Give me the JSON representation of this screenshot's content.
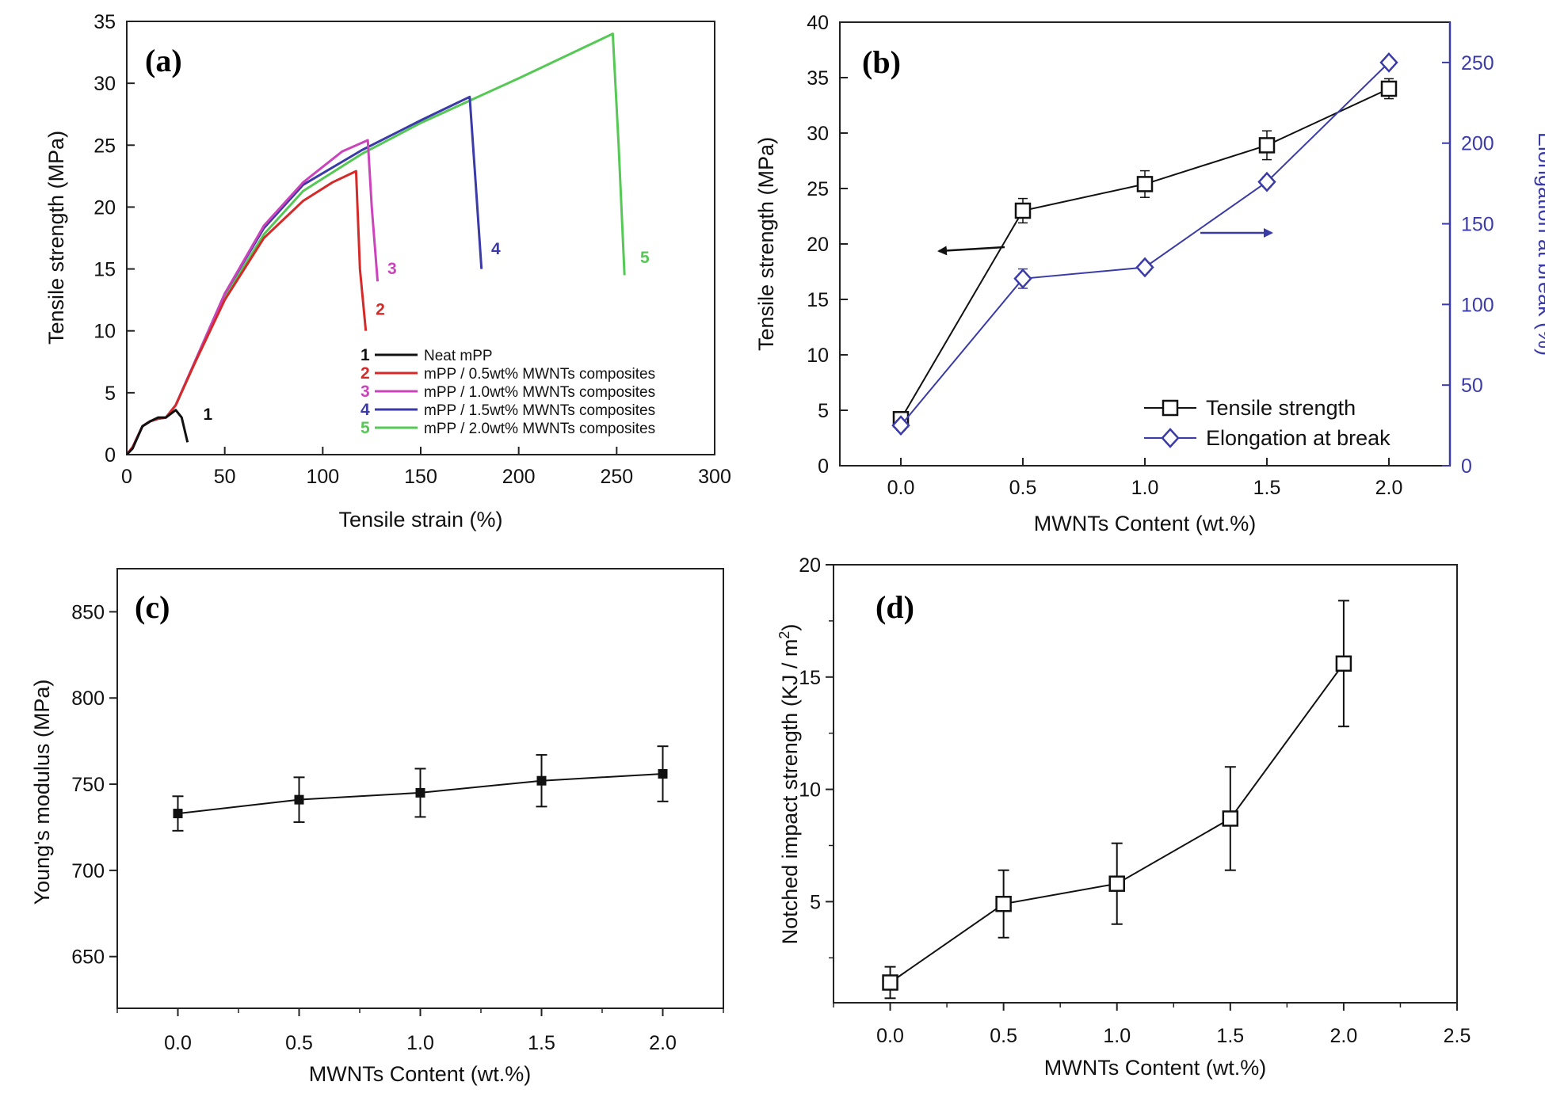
{
  "chart_data": [
    {
      "panel": "(a)",
      "type": "line",
      "xlabel": "Tensile strain (%)",
      "ylabel": "Tensile strength (MPa)",
      "xlim": [
        0,
        300
      ],
      "ylim": [
        0,
        35
      ],
      "xticks": [
        "0",
        "50",
        "100",
        "150",
        "200",
        "250",
        "300"
      ],
      "yticks": [
        "0",
        "5",
        "10",
        "15",
        "20",
        "25",
        "30",
        "35"
      ],
      "series": [
        {
          "id": "1",
          "name": "Neat mPP",
          "color": "#111111",
          "x": [
            0,
            3,
            8,
            12,
            16,
            20,
            25,
            28,
            31
          ],
          "y": [
            0,
            0.5,
            2.3,
            2.7,
            3.0,
            3.0,
            3.6,
            3.0,
            1.0
          ]
        },
        {
          "id": "2",
          "name": "mPP / 0.5wt% MWNTs composites",
          "color": "#d42a2a",
          "x": [
            0,
            3,
            8,
            12,
            16,
            20,
            25,
            35,
            50,
            70,
            90,
            105,
            117,
            119,
            122
          ],
          "y": [
            0,
            0.6,
            2.3,
            2.7,
            2.9,
            3.0,
            4.0,
            7.5,
            12.5,
            17.5,
            20.5,
            22.0,
            22.9,
            15.0,
            10.0
          ]
        },
        {
          "id": "3",
          "name": "mPP / 1.0wt% MWNTs composites",
          "color": "#cc44bb",
          "x": [
            0,
            3,
            8,
            12,
            16,
            20,
            25,
            35,
            50,
            70,
            90,
            110,
            123,
            125,
            128
          ],
          "y": [
            0,
            0.6,
            2.3,
            2.7,
            2.9,
            3.0,
            4.0,
            7.6,
            13.0,
            18.5,
            22.0,
            24.5,
            25.4,
            20.0,
            14.0
          ]
        },
        {
          "id": "4",
          "name": "mPP / 1.5wt% MWNTs composites",
          "color": "#3a3aa8",
          "x": [
            0,
            3,
            8,
            12,
            16,
            20,
            25,
            35,
            50,
            70,
            90,
            120,
            150,
            175,
            178,
            181
          ],
          "y": [
            0,
            0.6,
            2.3,
            2.7,
            2.9,
            3.0,
            4.0,
            7.6,
            13.0,
            18.3,
            21.8,
            24.6,
            27.0,
            28.9,
            22.0,
            15.0
          ]
        },
        {
          "id": "5",
          "name": "mPP / 2.0wt% MWNTs composites",
          "color": "#55c855",
          "x": [
            0,
            3,
            8,
            12,
            16,
            20,
            25,
            35,
            50,
            70,
            90,
            120,
            150,
            200,
            248,
            251,
            254
          ],
          "y": [
            0,
            0.6,
            2.3,
            2.7,
            2.9,
            3.0,
            4.0,
            7.5,
            12.7,
            17.8,
            21.3,
            24.3,
            26.8,
            30.4,
            34.0,
            25.0,
            14.5
          ]
        }
      ],
      "curve_labels": [
        {
          "text": "1",
          "x": 39,
          "y": 2.8
        },
        {
          "text": "2",
          "x": 127,
          "y": 11.3
        },
        {
          "text": "3",
          "x": 133,
          "y": 14.6
        },
        {
          "text": "4",
          "x": 186,
          "y": 16.2
        },
        {
          "text": "5",
          "x": 262,
          "y": 15.5
        }
      ]
    },
    {
      "panel": "(b)",
      "type": "line",
      "xlabel": "MWNTs Content (wt.%)",
      "ylabel": "Tensile strength (MPa)",
      "y2label": "Elongation at break (%)",
      "xlim": [
        -0.25,
        2.25
      ],
      "ylim": [
        0,
        40
      ],
      "y2lim": [
        0,
        275
      ],
      "categories": [
        0.0,
        0.5,
        1.0,
        1.5,
        2.0
      ],
      "xticks": [
        "0.0",
        "0.5",
        "1.0",
        "1.5",
        "2.0"
      ],
      "yticks": [
        "0",
        "5",
        "10",
        "15",
        "20",
        "25",
        "30",
        "35",
        "40"
      ],
      "y2ticks": [
        "0",
        "50",
        "100",
        "150",
        "200",
        "250"
      ],
      "series": [
        {
          "name": "Tensile strength",
          "axis": "left",
          "marker": "square",
          "color": "#111111",
          "values": [
            4.2,
            23.0,
            25.4,
            28.9,
            34.0
          ],
          "errors": [
            0.4,
            1.1,
            1.2,
            1.3,
            0.9
          ]
        },
        {
          "name": "Elongation at break",
          "axis": "right",
          "marker": "diamond",
          "color": "#3b3ba8",
          "values": [
            25,
            116,
            123,
            176,
            250
          ],
          "errors": [
            3,
            6,
            3,
            3,
            2
          ]
        }
      ]
    },
    {
      "panel": "(c)",
      "type": "line",
      "xlabel": "MWNTs Content (wt.%)",
      "ylabel": "Young's modulus (MPa)",
      "xlim": [
        -0.25,
        2.25
      ],
      "ylim": [
        620,
        875
      ],
      "xticks": [
        "0.0",
        "0.5",
        "1.0",
        "1.5",
        "2.0"
      ],
      "yticks": [
        "650",
        "700",
        "750",
        "800",
        "850"
      ],
      "categories": [
        0.0,
        0.5,
        1.0,
        1.5,
        2.0
      ],
      "series": [
        {
          "name": "Young's modulus",
          "marker": "filled-square",
          "color": "#111111",
          "values": [
            733,
            741,
            745,
            752,
            756
          ],
          "errors": [
            10,
            13,
            14,
            15,
            16
          ]
        }
      ]
    },
    {
      "panel": "(d)",
      "type": "line",
      "xlabel": "MWNTs Content (wt.%)",
      "ylabel": "Notched impact strength (KJ / m",
      "ylabel_sup": "2",
      "ylabel_end": ")",
      "xlim": [
        -0.25,
        2.5
      ],
      "ylim": [
        0.5,
        20
      ],
      "xticks": [
        "0.0",
        "0.5",
        "1.0",
        "1.5",
        "2.0",
        "2.5"
      ],
      "yticks": [
        "5",
        "10",
        "15",
        "20"
      ],
      "categories": [
        0.0,
        0.5,
        1.0,
        1.5,
        2.0
      ],
      "series": [
        {
          "name": "Notched impact strength",
          "marker": "open-square",
          "color": "#111111",
          "values": [
            1.4,
            4.9,
            5.8,
            8.7,
            15.6
          ],
          "errors": [
            0.7,
            1.5,
            1.8,
            2.3,
            2.8
          ]
        }
      ]
    }
  ]
}
